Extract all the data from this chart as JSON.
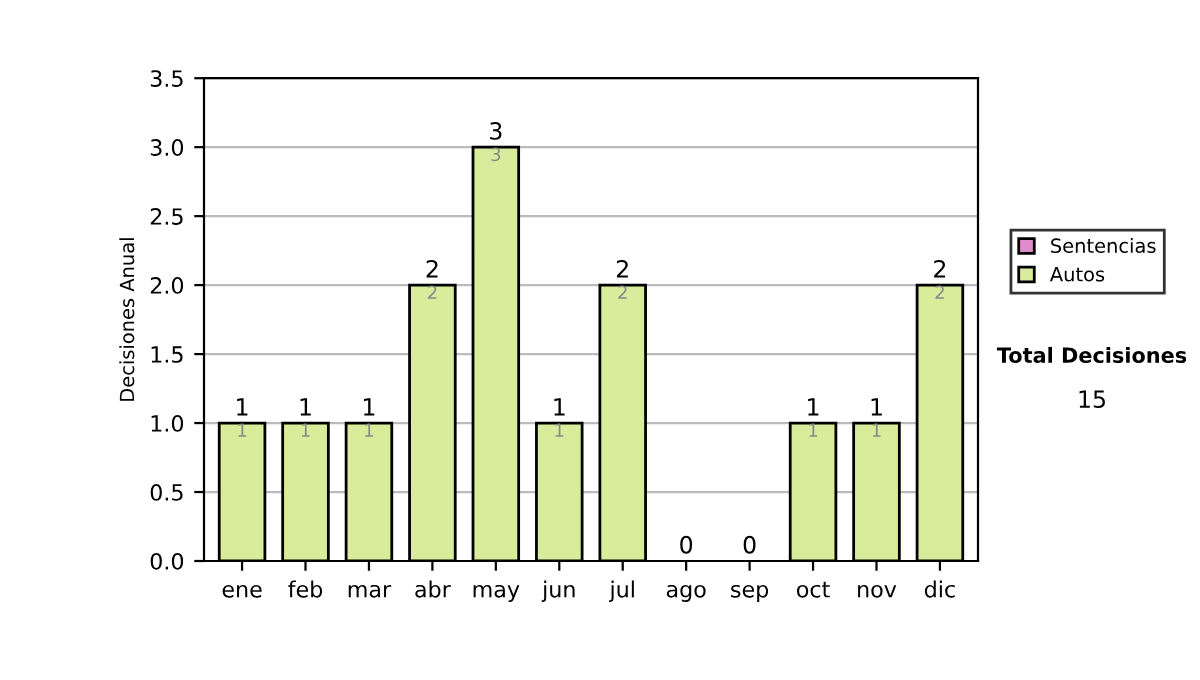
{
  "chart_data": {
    "type": "bar",
    "stacked": true,
    "categories": [
      "ene",
      "feb",
      "mar",
      "abr",
      "may",
      "jun",
      "jul",
      "ago",
      "sep",
      "oct",
      "nov",
      "dic"
    ],
    "series": [
      {
        "name": "Sentencias",
        "color": "#e08ccc",
        "values": [
          0,
          0,
          0,
          0,
          0,
          0,
          0,
          0,
          0,
          0,
          0,
          0
        ]
      },
      {
        "name": "Autos",
        "color": "#d8ec9c",
        "values": [
          1,
          1,
          1,
          2,
          3,
          1,
          2,
          0,
          0,
          1,
          1,
          2
        ],
        "value_labels": [
          "1",
          "1",
          "1",
          "2",
          "3",
          "1",
          "2",
          null,
          null,
          "1",
          "1",
          "2"
        ]
      }
    ],
    "totals": [
      "1",
      "1",
      "1",
      "2",
      "3",
      "1",
      "2",
      "0",
      "0",
      "1",
      "1",
      "2"
    ],
    "ylabel": "Decisiones Anual",
    "ylim": [
      0,
      3.5
    ],
    "yticks": [
      "0.0",
      "0.5",
      "1.0",
      "1.5",
      "2.0",
      "2.5",
      "3.0",
      "3.5"
    ],
    "grid": "y",
    "legend": "right",
    "annotations": [
      "Total Decisiones",
      "15"
    ]
  }
}
